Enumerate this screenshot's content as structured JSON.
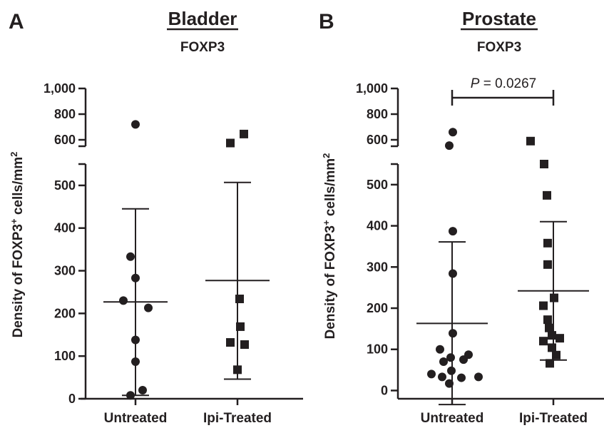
{
  "colors": {
    "ink": "#231f20",
    "background": "#ffffff"
  },
  "chart_data": [
    {
      "type": "scatter",
      "panel_label": "A",
      "title": "Bladder",
      "subtitle": "FOXP3",
      "ylabel_parts": {
        "main": "Density of FOXP3",
        "sup1": "+",
        "mid": " cells/mm",
        "sup2": "2"
      },
      "categories": [
        "Untreated",
        "Ipi-Treated"
      ],
      "y_segments": [
        {
          "range": [
            0,
            550
          ],
          "ticks": [
            "0",
            "100",
            "200",
            "300",
            "400",
            "500"
          ],
          "tick_values": [
            0,
            100,
            200,
            300,
            400,
            500
          ]
        },
        {
          "range": [
            550,
            1000
          ],
          "ticks": [
            "600",
            "800",
            "1,000"
          ],
          "tick_values": [
            600,
            800,
            1000
          ]
        }
      ],
      "series": [
        {
          "category": "Untreated",
          "marker": "circle",
          "values": [
            720,
            333,
            283,
            230,
            213,
            138,
            87,
            20,
            8
          ],
          "mean": 227,
          "sd_high": 445,
          "sd_low": 8
        },
        {
          "category": "Ipi-Treated",
          "marker": "square",
          "values": [
            645,
            575,
            234,
            169,
            132,
            127,
            68
          ],
          "mean": 277,
          "sd_high": 507,
          "sd_low": 46
        }
      ]
    },
    {
      "type": "scatter",
      "panel_label": "B",
      "title": "Prostate",
      "subtitle": "FOXP3",
      "ylabel_parts": {
        "main": "Density of FOXP3",
        "sup1": "+",
        "mid": " cells/mm",
        "sup2": "2"
      },
      "categories": [
        "Untreated",
        "Ipi-Treated"
      ],
      "y_segments": [
        {
          "range": [
            -20,
            550
          ],
          "ticks": [
            "0",
            "100",
            "200",
            "300",
            "400",
            "500"
          ],
          "tick_values": [
            0,
            100,
            200,
            300,
            400,
            500
          ]
        },
        {
          "range": [
            550,
            1000
          ],
          "ticks": [
            "600",
            "800",
            "1,000"
          ],
          "tick_values": [
            600,
            800,
            1000
          ]
        }
      ],
      "series": [
        {
          "category": "Untreated",
          "marker": "circle",
          "values": [
            660,
            555,
            387,
            284,
            139,
            100,
            87,
            80,
            75,
            70,
            48,
            40,
            33,
            31,
            33,
            17
          ],
          "mean": 163,
          "sd_high": 361,
          "sd_low": -34
        },
        {
          "category": "Ipi-Treated",
          "marker": "square",
          "values": [
            590,
            550,
            474,
            358,
            306,
            225,
            206,
            172,
            152,
            134,
            127,
            120,
            104,
            86,
            66
          ],
          "mean": 242,
          "sd_high": 410,
          "sd_low": 74
        }
      ],
      "annotation": {
        "p_symbol": "P",
        "p_text": " = 0.0267"
      }
    }
  ]
}
